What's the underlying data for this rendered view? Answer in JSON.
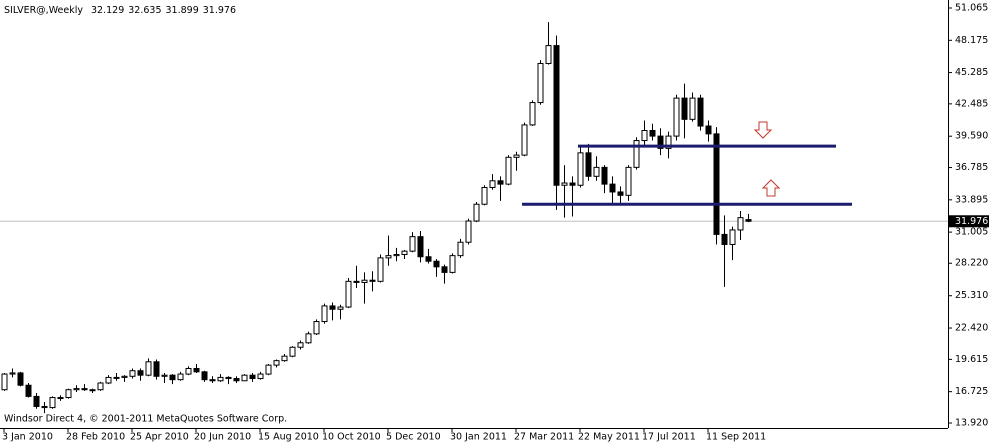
{
  "chart_data": {
    "type": "candlestick",
    "title": "SILVER@,Weekly",
    "header_values": [
      32.129,
      32.635,
      31.899,
      31.976
    ],
    "footer": "Windsor Direct 4, © 2001-2011 MetaQuotes Software Corp.",
    "categories": [
      "3 Jan 2010",
      null,
      null,
      null,
      null,
      null,
      null,
      null,
      "28 Feb 2010",
      null,
      null,
      null,
      null,
      null,
      null,
      null,
      "25 Apr 2010",
      null,
      null,
      null,
      null,
      null,
      null,
      null,
      "20 Jun 2010",
      null,
      null,
      null,
      null,
      null,
      null,
      null,
      "15 Aug 2010",
      null,
      null,
      null,
      null,
      null,
      null,
      null,
      "10 Oct 2010",
      null,
      null,
      null,
      null,
      null,
      null,
      null,
      "5 Dec 2010",
      null,
      null,
      null,
      null,
      null,
      null,
      null,
      "30 Jan 2011",
      null,
      null,
      null,
      null,
      null,
      null,
      null,
      "27 Mar 2011",
      null,
      null,
      null,
      null,
      null,
      null,
      null,
      "22 May 2011",
      null,
      null,
      null,
      null,
      null,
      null,
      null,
      "17 Jul 2011",
      null,
      null,
      null,
      null,
      null,
      null,
      null,
      "11 Sep 2011",
      null,
      null,
      null,
      null,
      null
    ],
    "open": [
      16.9,
      18.3,
      18.4,
      17.3,
      16.3,
      15.4,
      15.3,
      16.2,
      16.2,
      16.9,
      17.0,
      16.9,
      16.9,
      17.5,
      18.0,
      18.0,
      18.1,
      18.6,
      18.2,
      19.4,
      18.1,
      18.2,
      17.8,
      18.3,
      18.8,
      18.5,
      17.8,
      17.7,
      18.0,
      17.9,
      17.7,
      18.2,
      17.9,
      18.3,
      19.1,
      19.5,
      19.9,
      20.7,
      21.1,
      21.9,
      23.0,
      24.4,
      24.1,
      24.3,
      26.6,
      26.5,
      26.7,
      26.6,
      28.7,
      28.9,
      29.0,
      29.3,
      30.6,
      28.8,
      28.4,
      27.9,
      27.4,
      28.9,
      30.1,
      32.0,
      33.5,
      35.0,
      35.6,
      35.3,
      37.7,
      37.9,
      40.6,
      42.6,
      46.1,
      47.7,
      35.2,
      35.4,
      35.2,
      38.1,
      36.0,
      36.8,
      35.3,
      34.6,
      34.3,
      36.8,
      39.2,
      40.1,
      39.6,
      38.5,
      39.6,
      43.0,
      41.1,
      43.0,
      40.5,
      39.8,
      30.8,
      29.9,
      31.2,
      32.129
    ],
    "high": [
      18.4,
      18.8,
      18.5,
      17.5,
      16.6,
      15.8,
      16.3,
      16.4,
      17.0,
      17.3,
      17.4,
      17.0,
      17.6,
      18.2,
      18.4,
      18.2,
      18.8,
      18.8,
      19.7,
      19.6,
      18.4,
      18.3,
      18.5,
      19.0,
      19.2,
      18.6,
      18.1,
      18.3,
      18.1,
      18.1,
      18.3,
      18.4,
      18.5,
      19.2,
      19.6,
      20.1,
      20.8,
      21.3,
      22.1,
      23.2,
      24.6,
      24.7,
      24.5,
      26.9,
      28.0,
      27.4,
      27.5,
      29.0,
      30.7,
      29.6,
      29.4,
      31.0,
      31.1,
      29.5,
      28.6,
      28.1,
      29.1,
      30.4,
      32.2,
      33.7,
      35.2,
      36.2,
      36.0,
      37.9,
      38.2,
      40.8,
      42.8,
      46.4,
      49.8,
      48.6,
      37.0,
      36.0,
      38.6,
      38.9,
      37.8,
      37.0,
      36.0,
      35.1,
      37.0,
      39.5,
      41.0,
      40.7,
      40.3,
      40.0,
      43.3,
      44.3,
      43.5,
      43.3,
      41.0,
      40.4,
      32.5,
      31.5,
      32.9,
      32.635
    ],
    "low": [
      16.8,
      18.0,
      17.2,
      16.2,
      15.2,
      14.8,
      15.2,
      15.9,
      16.1,
      16.7,
      16.8,
      16.6,
      16.8,
      17.4,
      17.7,
      17.6,
      17.9,
      17.7,
      18.1,
      17.8,
      17.5,
      17.4,
      17.7,
      18.2,
      18.4,
      17.6,
      17.5,
      17.6,
      17.4,
      17.5,
      17.7,
      17.6,
      17.8,
      18.2,
      18.9,
      19.4,
      19.8,
      20.5,
      21.0,
      21.8,
      22.8,
      23.1,
      23.2,
      24.2,
      26.0,
      24.6,
      25.7,
      26.5,
      28.0,
      28.4,
      28.6,
      29.2,
      28.3,
      28.2,
      27.0,
      26.4,
      27.3,
      28.7,
      29.9,
      31.9,
      33.4,
      34.8,
      33.8,
      35.2,
      36.5,
      37.8,
      40.5,
      42.4,
      46.0,
      33.0,
      32.3,
      32.4,
      35.0,
      35.6,
      35.6,
      34.5,
      33.6,
      33.5,
      33.8,
      36.6,
      38.6,
      39.2,
      37.9,
      37.6,
      39.2,
      39.4,
      40.9,
      40.1,
      39.1,
      29.9,
      26.1,
      28.5,
      30.3,
      31.899
    ],
    "close": [
      18.3,
      18.4,
      17.3,
      16.3,
      15.4,
      15.3,
      16.2,
      16.2,
      16.9,
      17.0,
      16.9,
      16.9,
      17.5,
      18.0,
      18.0,
      18.1,
      18.6,
      18.2,
      19.4,
      18.1,
      18.2,
      17.8,
      18.3,
      18.8,
      18.5,
      17.8,
      17.7,
      18.0,
      17.9,
      17.7,
      18.2,
      17.9,
      18.3,
      19.1,
      19.5,
      19.9,
      20.7,
      21.1,
      21.9,
      23.0,
      24.4,
      24.1,
      24.3,
      26.6,
      26.5,
      26.7,
      26.6,
      28.7,
      28.9,
      29.0,
      29.3,
      30.6,
      28.8,
      28.4,
      27.9,
      27.4,
      28.9,
      30.1,
      32.0,
      33.5,
      35.0,
      35.6,
      35.3,
      37.7,
      37.9,
      40.6,
      42.6,
      46.1,
      47.7,
      35.2,
      35.4,
      35.2,
      38.1,
      36.0,
      36.8,
      35.3,
      34.6,
      34.3,
      36.8,
      39.2,
      40.1,
      39.6,
      38.5,
      39.6,
      43.0,
      41.1,
      43.0,
      40.5,
      39.8,
      30.8,
      29.9,
      31.2,
      32.3,
      31.976
    ],
    "up_color": "#ffffff",
    "down_color": "#000000",
    "levels": [
      38.7,
      33.5
    ],
    "level_color": "#1c1c6e",
    "ylim": [
      13.92,
      51.065
    ],
    "yticks": [
      {
        "value": 13.92,
        "label": "13.920"
      },
      16.725,
      19.615,
      {
        "value": 22.42,
        "label": "22.420"
      },
      {
        "value": 25.31,
        "label": "25.310"
      },
      {
        "value": 28.22,
        "label": "28.220"
      },
      31.005,
      33.895,
      36.785,
      {
        "value": 39.59,
        "label": "39.590"
      },
      42.485,
      45.285,
      48.175,
      51.065
    ]
  }
}
